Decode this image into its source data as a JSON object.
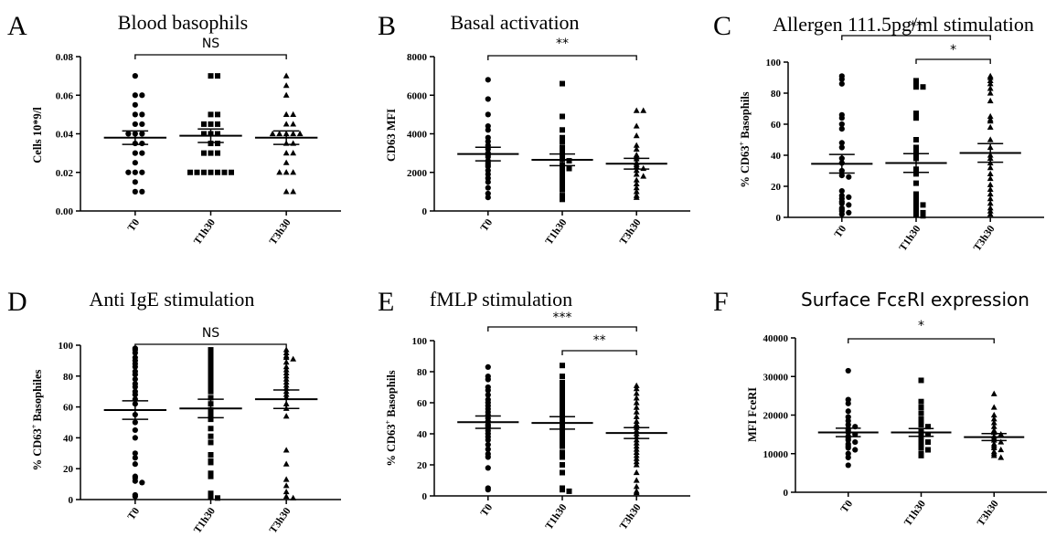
{
  "figure": {
    "panels": [
      {
        "letter": "A",
        "title": "Blood basophils"
      },
      {
        "letter": "B",
        "title": "Basal activation"
      },
      {
        "letter": "C",
        "title": "Allergen 111.5pg/ml stimulation"
      },
      {
        "letter": "D",
        "title": "Anti IgE stimulation"
      },
      {
        "letter": "E",
        "title": "fMLP stimulation"
      },
      {
        "letter": "F",
        "title": "Surface FcεRI expression"
      }
    ]
  },
  "chart_data": [
    {
      "type": "scatter",
      "title": "Blood basophils",
      "ylabel": "Cells 10*9/l",
      "categories": [
        "T0",
        "T1h30",
        "T3h30"
      ],
      "ylim": [
        0,
        0.08
      ],
      "yticks": [
        "0.00",
        "0.02",
        "0.04",
        "0.06",
        "0.08"
      ],
      "series": [
        {
          "group": "T0",
          "marker": "circle",
          "values": [
            0.07,
            0.06,
            0.06,
            0.055,
            0.05,
            0.05,
            0.045,
            0.045,
            0.04,
            0.04,
            0.04,
            0.035,
            0.035,
            0.03,
            0.03,
            0.025,
            0.02,
            0.02,
            0.02,
            0.015,
            0.01,
            0.01
          ],
          "mean": 0.038,
          "sem": 0.0035
        },
        {
          "group": "T1h30",
          "marker": "square",
          "values": [
            0.07,
            0.07,
            0.05,
            0.05,
            0.045,
            0.045,
            0.045,
            0.04,
            0.04,
            0.04,
            0.035,
            0.035,
            0.03,
            0.03,
            0.03,
            0.02,
            0.02,
            0.02,
            0.02,
            0.02,
            0.02,
            0.02
          ],
          "mean": 0.039,
          "sem": 0.0035
        },
        {
          "group": "T3h30",
          "marker": "triangle",
          "values": [
            0.07,
            0.065,
            0.06,
            0.05,
            0.05,
            0.045,
            0.045,
            0.04,
            0.04,
            0.04,
            0.04,
            0.04,
            0.035,
            0.035,
            0.03,
            0.03,
            0.025,
            0.02,
            0.02,
            0.02,
            0.01,
            0.01
          ],
          "mean": 0.038,
          "sem": 0.0035
        }
      ],
      "comparisons": [
        {
          "from": "T0",
          "to": "T3h30",
          "label": "NS"
        }
      ]
    },
    {
      "type": "scatter",
      "title": "Basal activation",
      "ylabel": "CD63 MFI",
      "categories": [
        "T0",
        "T1h30",
        "T3h30"
      ],
      "ylim": [
        0,
        8000
      ],
      "yticks": [
        "0",
        "2000",
        "4000",
        "6000",
        "8000"
      ],
      "series": [
        {
          "group": "T0",
          "marker": "circle",
          "values": [
            6800,
            5800,
            5000,
            4400,
            4200,
            3800,
            3600,
            3400,
            3200,
            3000,
            2900,
            2800,
            2600,
            2500,
            2400,
            2300,
            2100,
            1900,
            1700,
            1500,
            1200,
            900,
            700
          ],
          "mean": 2950,
          "sem": 350
        },
        {
          "group": "T1h30",
          "marker": "square",
          "values": [
            6600,
            4900,
            4200,
            3800,
            3600,
            3300,
            3100,
            2900,
            2800,
            2700,
            2600,
            2400,
            2300,
            2200,
            2100,
            2000,
            1900,
            1700,
            1500,
            1300,
            1100,
            800,
            600
          ],
          "mean": 2650,
          "sem": 300
        },
        {
          "group": "T3h30",
          "marker": "triangle",
          "values": [
            5200,
            5200,
            4400,
            3900,
            3400,
            3200,
            2900,
            2800,
            2700,
            2500,
            2400,
            2300,
            2200,
            2100,
            1900,
            1800,
            1600,
            1400,
            1200,
            1000,
            800,
            700
          ],
          "mean": 2450,
          "sem": 280
        }
      ],
      "comparisons": [
        {
          "from": "T0",
          "to": "T3h30",
          "label": "**"
        }
      ]
    },
    {
      "type": "scatter",
      "title": "Allergen 111.5pg/ml stimulation",
      "ylabel": "% CD63+ Basophils",
      "categories": [
        "T0",
        "T1h30",
        "T3h30"
      ],
      "ylim": [
        0,
        100
      ],
      "yticks": [
        "0",
        "20",
        "40",
        "60",
        "80",
        "100"
      ],
      "series": [
        {
          "group": "T0",
          "marker": "circle",
          "values": [
            91,
            89,
            86,
            66,
            64,
            60,
            57,
            48,
            45,
            38,
            35,
            30,
            27,
            26,
            17,
            14,
            13,
            12,
            10,
            9,
            8,
            6,
            5,
            4,
            3,
            2
          ],
          "mean": 34.5,
          "sem": 6
        },
        {
          "group": "T1h30",
          "marker": "square",
          "values": [
            88,
            87,
            84,
            84,
            67,
            65,
            64,
            50,
            45,
            42,
            40,
            38,
            31,
            28,
            22,
            15,
            13,
            11,
            9,
            8,
            7,
            5,
            4,
            3,
            2,
            1
          ],
          "mean": 35,
          "sem": 6
        },
        {
          "group": "T3h30",
          "marker": "triangle",
          "values": [
            91,
            90,
            88,
            86,
            83,
            80,
            75,
            65,
            63,
            62,
            58,
            50,
            45,
            40,
            38,
            35,
            32,
            28,
            25,
            21,
            18,
            15,
            12,
            9,
            6,
            4,
            2
          ],
          "mean": 41.5,
          "sem": 6
        }
      ],
      "comparisons": [
        {
          "from": "T0",
          "to": "T3h30",
          "label": "**"
        },
        {
          "from": "T1h30",
          "to": "T3h30",
          "label": "*"
        }
      ]
    },
    {
      "type": "scatter",
      "title": "Anti IgE stimulation",
      "ylabel": "% CD63+ Basophiles",
      "categories": [
        "T0",
        "T1h30",
        "T3h30"
      ],
      "ylim": [
        0,
        100
      ],
      "yticks": [
        "0",
        "20",
        "40",
        "60",
        "80",
        "100"
      ],
      "series": [
        {
          "group": "T0",
          "marker": "circle",
          "values": [
            98,
            97,
            95,
            92,
            90,
            88,
            86,
            83,
            81,
            78,
            75,
            73,
            70,
            68,
            65,
            62,
            55,
            50,
            45,
            40,
            30,
            27,
            23,
            15,
            14,
            12,
            11,
            3,
            2
          ],
          "mean": 58,
          "sem": 6
        },
        {
          "group": "T1h30",
          "marker": "square",
          "values": [
            97,
            95,
            93,
            92,
            90,
            88,
            85,
            82,
            80,
            78,
            75,
            73,
            70,
            66,
            62,
            58,
            55,
            52,
            46,
            41,
            37,
            29,
            25,
            24,
            17,
            15,
            4,
            2,
            1
          ],
          "mean": 59,
          "sem": 6
        },
        {
          "group": "T3h30",
          "marker": "triangle",
          "values": [
            97,
            95,
            93,
            92,
            91,
            89,
            86,
            84,
            82,
            80,
            78,
            76,
            74,
            72,
            70,
            68,
            66,
            62,
            59,
            54,
            32,
            23,
            13,
            9,
            5,
            2,
            1
          ],
          "mean": 65,
          "sem": 6
        }
      ],
      "comparisons": [
        {
          "from": "T0",
          "to": "T3h30",
          "label": "NS"
        }
      ]
    },
    {
      "type": "scatter",
      "title": "fMLP stimulation",
      "ylabel": "% CD63+ Basophils",
      "categories": [
        "T0",
        "T1h30",
        "T3h30"
      ],
      "ylim": [
        0,
        100
      ],
      "yticks": [
        "0",
        "20",
        "40",
        "60",
        "80",
        "100"
      ],
      "series": [
        {
          "group": "T0",
          "marker": "circle",
          "values": [
            83,
            77,
            75,
            70,
            68,
            65,
            62,
            60,
            58,
            56,
            54,
            52,
            50,
            48,
            46,
            45,
            44,
            42,
            40,
            38,
            36,
            33,
            30,
            27,
            25,
            18,
            5,
            4
          ],
          "mean": 47.5,
          "sem": 4
        },
        {
          "group": "T1h30",
          "marker": "square",
          "values": [
            84,
            77,
            73,
            70,
            67,
            64,
            62,
            60,
            58,
            56,
            54,
            52,
            50,
            48,
            46,
            44,
            42,
            40,
            38,
            35,
            32,
            28,
            25,
            20,
            15,
            5,
            4,
            3
          ],
          "mean": 47,
          "sem": 4
        },
        {
          "group": "T3h30",
          "marker": "triangle",
          "values": [
            71,
            69,
            66,
            63,
            60,
            57,
            54,
            51,
            48,
            46,
            44,
            42,
            40,
            38,
            36,
            34,
            32,
            30,
            28,
            26,
            24,
            22,
            20,
            15,
            10,
            6,
            3,
            2
          ],
          "mean": 40.5,
          "sem": 3.5
        }
      ],
      "comparisons": [
        {
          "from": "T0",
          "to": "T3h30",
          "label": "***"
        },
        {
          "from": "T1h30",
          "to": "T3h30",
          "label": "**"
        }
      ]
    },
    {
      "type": "scatter",
      "title": "Surface FcεRI expression",
      "ylabel": "MFI FceRI",
      "categories": [
        "T0",
        "T1h30",
        "T3h30"
      ],
      "ylim": [
        0,
        40000
      ],
      "yticks": [
        "0",
        "10000",
        "20000",
        "30000",
        "40000"
      ],
      "series": [
        {
          "group": "T0",
          "marker": "circle",
          "values": [
            31500,
            24000,
            23000,
            21000,
            19500,
            18500,
            17500,
            17000,
            16500,
            16000,
            15500,
            15000,
            14500,
            14000,
            13500,
            13000,
            12500,
            12000,
            11500,
            11000,
            10000,
            9000,
            7000
          ],
          "mean": 15500,
          "sem": 1100
        },
        {
          "group": "T1h30",
          "marker": "square",
          "values": [
            29000,
            23500,
            22000,
            20500,
            19000,
            18500,
            17500,
            17000,
            16000,
            15500,
            15000,
            14500,
            14000,
            13500,
            13000,
            12500,
            12000,
            11500,
            11000,
            10000,
            9500
          ],
          "mean": 15500,
          "sem": 1000
        },
        {
          "group": "T3h30",
          "marker": "triangle",
          "values": [
            25500,
            22000,
            20000,
            19000,
            18000,
            17000,
            16000,
            15500,
            15000,
            14500,
            14000,
            13500,
            13000,
            12500,
            12000,
            11500,
            11000,
            10500,
            10000,
            9500,
            9000
          ],
          "mean": 14300,
          "sem": 900
        }
      ],
      "comparisons": [
        {
          "from": "T0",
          "to": "T3h30",
          "label": "*"
        }
      ]
    }
  ]
}
